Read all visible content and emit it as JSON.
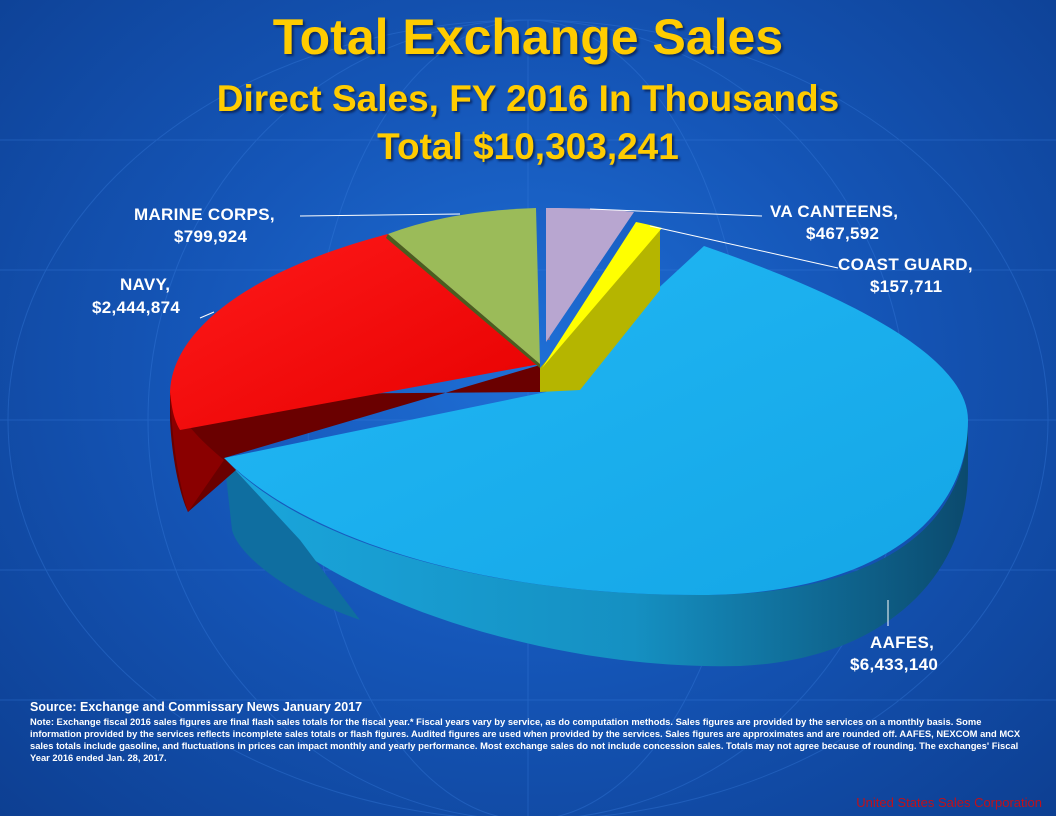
{
  "header": {
    "title": "Total Exchange Sales",
    "subtitle": "Direct Sales, FY 2016 In Thousands",
    "total": "Total $10,303,241"
  },
  "chart_data": {
    "type": "pie",
    "title": "Total Exchange Sales",
    "subtitle": "Direct Sales, FY 2016 In Thousands",
    "total": 10303241,
    "series": [
      {
        "name": "VA CANTEENS",
        "value": 467592,
        "label_value": "$467,592",
        "color": "#b8a6d0"
      },
      {
        "name": "COAST GUARD",
        "value": 157711,
        "label_value": "$157,711",
        "color": "#ffff00"
      },
      {
        "name": "AAFES",
        "value": 6433140,
        "label_value": "$6,433,140",
        "color": "#19b2f0"
      },
      {
        "name": "NAVY",
        "value": 2444874,
        "label_value": "$2,444,874",
        "color": "#ff0000"
      },
      {
        "name": "MARINE CORPS",
        "value": 799924,
        "label_value": "$799,924",
        "color": "#9bbb59"
      }
    ]
  },
  "labels": {
    "va": {
      "name": "VA CANTEENS,",
      "value": "$467,592"
    },
    "cg": {
      "name": "COAST GUARD,",
      "value": "$157,711"
    },
    "aafes": {
      "name": "AAFES,",
      "value": "$6,433,140"
    },
    "navy": {
      "name": "NAVY,",
      "value": "$2,444,874"
    },
    "mc": {
      "name": "MARINE CORPS,",
      "value": "$799,924"
    }
  },
  "footer": {
    "source": "Source: Exchange and Commissary News January 2017",
    "note": "Note: Exchange fiscal 2016 sales figures are final flash sales totals for the fiscal year.* Fiscal years vary by service, as do computation methods. Sales figures are provided by the services on a monthly basis. Some information provided by the services reflects incomplete sales totals or flash figures. Audited figures are used when provided by the services. Sales figures are approximates and are rounded off. AAFES, NEXCOM and MCX sales totals include gasoline, and fluctuations in prices can impact monthly and yearly performance. Most exchange sales do not include concession sales. Totals may not agree because of rounding. The exchanges' Fiscal Year 2016 ended Jan. 28, 2017.",
    "credit": "United States Sales Corporation"
  }
}
